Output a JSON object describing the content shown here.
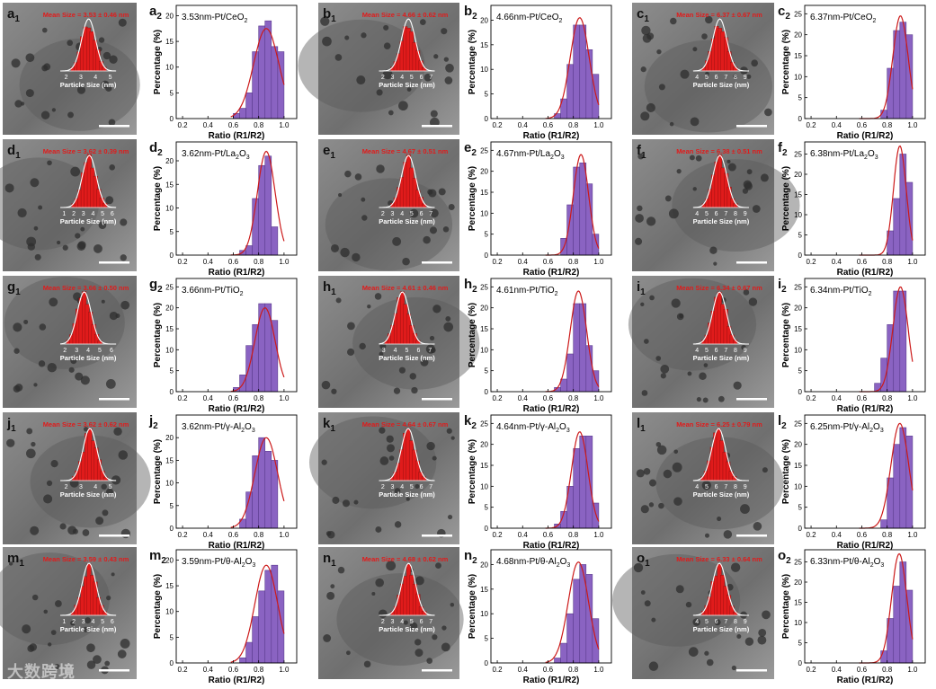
{
  "colors": {
    "bar": "#8a63c2",
    "bar_edge": "#5b3b8e",
    "fit": "#cc1a1a",
    "hist": "#e01b1b",
    "mean": "#e01b1b"
  },
  "watermark": "大数跨境",
  "rows": [
    {
      "catalyst": "Pt/CeO",
      "sub": "2",
      "panels": [
        {
          "tem_label": "a",
          "tem_mean": "Mean Size = 3.53 ± 0.46 nm",
          "tem_ticks": [
            "2",
            "3",
            "4",
            "5"
          ],
          "inset_center": 3.53,
          "chart_label": "a",
          "chart_title": "3.53nm-Pt/CeO"
        },
        {
          "tem_label": "b",
          "tem_mean": "Mean Size = 4.66 ± 0.62 nm",
          "tem_ticks": [
            "2",
            "3",
            "4",
            "5",
            "6",
            "7"
          ],
          "inset_center": 4.66,
          "chart_label": "b",
          "chart_title": "4.66nm-Pt/CeO"
        },
        {
          "tem_label": "c",
          "tem_mean": "Mean Size = 6.37 ± 0.67 nm",
          "tem_ticks": [
            "4",
            "5",
            "6",
            "7",
            "8",
            "9"
          ],
          "inset_center": 6.37,
          "chart_label": "c",
          "chart_title": "6.37nm-Pt/CeO"
        }
      ]
    },
    {
      "catalyst": "Pt/La",
      "sub": "2",
      "sub2": "3",
      "panels": [
        {
          "tem_label": "d",
          "tem_mean": "Mean Size = 3.62 ± 0.39 nm",
          "tem_ticks": [
            "1",
            "2",
            "3",
            "4",
            "5",
            "6"
          ],
          "inset_center": 3.62,
          "chart_label": "d",
          "chart_title": "3.62nm-Pt/La"
        },
        {
          "tem_label": "e",
          "tem_mean": "Mean Size = 4.67 ± 0.51 nm",
          "tem_ticks": [
            "2",
            "3",
            "4",
            "5",
            "6",
            "7"
          ],
          "inset_center": 4.67,
          "chart_label": "e",
          "chart_title": "4.67nm-Pt/La"
        },
        {
          "tem_label": "f",
          "tem_mean": "Mean Size = 6.38 ± 0.51 nm",
          "tem_ticks": [
            "4",
            "5",
            "6",
            "7",
            "8",
            "9"
          ],
          "inset_center": 6.38,
          "chart_label": "f",
          "chart_title": "6.38nm-Pt/La"
        }
      ]
    },
    {
      "catalyst": "Pt/TiO",
      "sub": "2",
      "panels": [
        {
          "tem_label": "g",
          "tem_mean": "Mean Size = 3.66 ± 0.50 nm",
          "tem_ticks": [
            "2",
            "3",
            "4",
            "5",
            "6"
          ],
          "inset_center": 3.66,
          "chart_label": "g",
          "chart_title": "3.66nm-Pt/TiO"
        },
        {
          "tem_label": "h",
          "tem_mean": "Mean Size = 4.61 ± 0.46 nm",
          "tem_ticks": [
            "3",
            "4",
            "5",
            "6",
            "7"
          ],
          "inset_center": 4.61,
          "chart_label": "h",
          "chart_title": "4.61nm-Pt/TiO"
        },
        {
          "tem_label": "i",
          "tem_mean": "Mean Size = 6.34 ± 0.67 nm",
          "tem_ticks": [
            "4",
            "5",
            "6",
            "7",
            "8",
            "9"
          ],
          "inset_center": 6.34,
          "chart_label": "i",
          "chart_title": "6.34nm-Pt/TiO"
        }
      ]
    },
    {
      "catalyst": "Pt/γ-Al",
      "sub": "2",
      "sub2": "3",
      "panels": [
        {
          "tem_label": "j",
          "tem_mean": "Mean Size = 3.62 ± 0.62 nm",
          "tem_ticks": [
            "2",
            "3",
            "4",
            "5"
          ],
          "inset_center": 3.62,
          "chart_label": "j",
          "chart_title": "3.62nm-Pt/γ-Al"
        },
        {
          "tem_label": "k",
          "tem_mean": "Mean Size = 4.64 ± 0.67 nm",
          "tem_ticks": [
            "2",
            "3",
            "4",
            "5",
            "6",
            "7"
          ],
          "inset_center": 4.64,
          "chart_label": "k",
          "chart_title": "4.64nm-Pt/γ-Al"
        },
        {
          "tem_label": "l",
          "tem_mean": "Mean Size = 6.25 ± 0.79 nm",
          "tem_ticks": [
            "4",
            "5",
            "6",
            "7",
            "8",
            "9"
          ],
          "inset_center": 6.25,
          "chart_label": "l",
          "chart_title": "6.25nm-Pt/γ-Al"
        }
      ]
    },
    {
      "catalyst": "Pt/θ-Al",
      "sub": "2",
      "sub2": "3",
      "panels": [
        {
          "tem_label": "m",
          "tem_mean": "Mean Size = 3.59 ± 0.43 nm",
          "tem_ticks": [
            "1",
            "2",
            "3",
            "4",
            "5",
            "6"
          ],
          "inset_center": 3.59,
          "chart_label": "m",
          "chart_title": "3.59nm-Pt/θ-Al"
        },
        {
          "tem_label": "n",
          "tem_mean": "Mean Size = 4.68 ± 0.62 nm",
          "tem_ticks": [
            "2",
            "3",
            "4",
            "5",
            "6",
            "7"
          ],
          "inset_center": 4.68,
          "chart_label": "n",
          "chart_title": "4.68nm-Pt/θ-Al"
        },
        {
          "tem_label": "o",
          "tem_mean": "Mean Size = 6.33 ± 0.64 nm",
          "tem_ticks": [
            "4",
            "5",
            "6",
            "7",
            "8",
            "9"
          ],
          "inset_center": 6.33,
          "chart_label": "o",
          "chart_title": "6.33nm-Pt/θ-Al"
        }
      ]
    }
  ],
  "inset_xlabel": "Particle Size (nm)",
  "chart_data": {
    "type": "bar",
    "title": "Distribution of ratio R1/R2 for Pt catalysts (15 panels)",
    "xlabel": "Ratio (R1/R2)",
    "ylabel": "Percentage (%)",
    "xlim": [
      0.15,
      1.1
    ],
    "xticks": [
      0.2,
      0.4,
      0.6,
      0.8,
      1.0
    ],
    "xtick_labels": [
      "0.2",
      "0.4",
      "0.6",
      "0.8",
      "1.0"
    ],
    "panels": [
      {
        "id": "a2",
        "title": "3.53nm-Pt/CeO2",
        "ylim": [
          0,
          22
        ],
        "yticks": [
          0,
          5,
          10,
          15,
          20
        ],
        "bar_centers": [
          0.625,
          0.675,
          0.725,
          0.775,
          0.825,
          0.875,
          0.925,
          0.975
        ],
        "values": [
          1,
          2,
          5,
          13,
          18,
          19,
          14,
          13
        ],
        "fit": {
          "mu": 0.86,
          "sigma": 0.1,
          "peak": 17.5
        }
      },
      {
        "id": "b2",
        "title": "4.66nm-Pt/CeO2",
        "ylim": [
          0,
          23
        ],
        "yticks": [
          0,
          5,
          10,
          15,
          20
        ],
        "bar_centers": [
          0.675,
          0.725,
          0.775,
          0.825,
          0.875,
          0.925,
          0.975
        ],
        "values": [
          1,
          4,
          11,
          19,
          19,
          14,
          9
        ],
        "fit": {
          "mu": 0.85,
          "sigma": 0.075,
          "peak": 20.5
        }
      },
      {
        "id": "c2",
        "title": "6.37nm-Pt/CeO2",
        "ylim": [
          0,
          27
        ],
        "yticks": [
          0,
          5,
          10,
          15,
          20,
          25
        ],
        "bar_centers": [
          0.775,
          0.825,
          0.875,
          0.925,
          0.975
        ],
        "values": [
          2,
          12,
          21,
          23,
          20
        ],
        "fit": {
          "mu": 0.905,
          "sigma": 0.06,
          "peak": 24.5
        }
      },
      {
        "id": "d2",
        "title": "3.62nm-Pt/La2O3",
        "ylim": [
          0,
          24
        ],
        "yticks": [
          0,
          5,
          10,
          15,
          20
        ],
        "bar_centers": [
          0.675,
          0.725,
          0.775,
          0.825,
          0.875,
          0.925
        ],
        "values": [
          1,
          2,
          12,
          19,
          21,
          6
        ],
        "fit": {
          "mu": 0.86,
          "sigma": 0.07,
          "peak": 22
        }
      },
      {
        "id": "e2",
        "title": "4.67nm-Pt/La2O3",
        "ylim": [
          0,
          27
        ],
        "yticks": [
          0,
          5,
          10,
          15,
          20,
          25
        ],
        "bar_centers": [
          0.725,
          0.775,
          0.825,
          0.875,
          0.925,
          0.975
        ],
        "values": [
          4,
          12,
          21,
          22,
          17,
          5
        ],
        "fit": {
          "mu": 0.86,
          "sigma": 0.06,
          "peak": 24
        }
      },
      {
        "id": "f2",
        "title": "6.38nm-Pt/La2O3",
        "ylim": [
          0,
          28
        ],
        "yticks": [
          0,
          5,
          10,
          15,
          20,
          25
        ],
        "bar_centers": [
          0.825,
          0.875,
          0.925,
          0.975
        ],
        "values": [
          6,
          14,
          25,
          18
        ],
        "fit": {
          "mu": 0.9,
          "sigma": 0.05,
          "peak": 27
        }
      },
      {
        "id": "g2",
        "title": "3.66nm-Pt/TiO2",
        "ylim": [
          0,
          27
        ],
        "yticks": [
          0,
          5,
          10,
          15,
          20,
          25
        ],
        "bar_centers": [
          0.625,
          0.675,
          0.725,
          0.775,
          0.825,
          0.875,
          0.925
        ],
        "values": [
          1,
          4,
          11,
          16,
          21,
          21,
          17
        ],
        "fit": {
          "mu": 0.85,
          "sigma": 0.08,
          "peak": 20
        }
      },
      {
        "id": "h2",
        "title": "4.61nm-Pt/TiO2",
        "ylim": [
          0,
          27
        ],
        "yticks": [
          0,
          5,
          10,
          15,
          20,
          25
        ],
        "bar_centers": [
          0.675,
          0.725,
          0.775,
          0.825,
          0.875,
          0.925,
          0.975
        ],
        "values": [
          1,
          3,
          9,
          21,
          21,
          11,
          5
        ],
        "fit": {
          "mu": 0.84,
          "sigma": 0.065,
          "peak": 24
        }
      },
      {
        "id": "i2",
        "title": "6.34nm-Pt/TiO2",
        "ylim": [
          0,
          27
        ],
        "yticks": [
          0,
          5,
          10,
          15,
          20,
          25
        ],
        "bar_centers": [
          0.725,
          0.775,
          0.825,
          0.875,
          0.925
        ],
        "values": [
          2,
          8,
          16,
          24,
          24
        ],
        "fit": {
          "mu": 0.905,
          "sigma": 0.06,
          "peak": 25
        }
      },
      {
        "id": "j2",
        "title": "3.62nm-Pt/γ-Al2O3",
        "ylim": [
          0,
          25
        ],
        "yticks": [
          0,
          5,
          10,
          15,
          20
        ],
        "bar_centers": [
          0.675,
          0.725,
          0.775,
          0.825,
          0.875,
          0.925
        ],
        "values": [
          2,
          8,
          16,
          20,
          17,
          15
        ],
        "fit": {
          "mu": 0.86,
          "sigma": 0.09,
          "peak": 20
        }
      },
      {
        "id": "k2",
        "title": "4.64nm-Pt/γ-Al2O3",
        "ylim": [
          0,
          27
        ],
        "yticks": [
          0,
          5,
          10,
          15,
          20,
          25
        ],
        "bar_centers": [
          0.675,
          0.725,
          0.775,
          0.825,
          0.875,
          0.925,
          0.975
        ],
        "values": [
          1,
          4,
          10,
          19,
          22,
          22,
          6
        ],
        "fit": {
          "mu": 0.85,
          "sigma": 0.065,
          "peak": 23
        }
      },
      {
        "id": "l2",
        "title": "6.25nm-Pt/γ-Al2O3",
        "ylim": [
          0,
          27
        ],
        "yticks": [
          0,
          5,
          10,
          15,
          20,
          25
        ],
        "bar_centers": [
          0.775,
          0.825,
          0.875,
          0.925,
          0.975
        ],
        "values": [
          2,
          12,
          20,
          24,
          22
        ],
        "fit": {
          "mu": 0.9,
          "sigma": 0.07,
          "peak": 25
        }
      },
      {
        "id": "m2",
        "title": "3.59nm-Pt/θ-Al2O3",
        "ylim": [
          0,
          22
        ],
        "yticks": [
          0,
          5,
          10,
          15,
          20
        ],
        "bar_centers": [
          0.675,
          0.725,
          0.775,
          0.825,
          0.875,
          0.925,
          0.975
        ],
        "values": [
          1,
          4,
          9,
          14,
          18,
          19,
          14
        ],
        "fit": {
          "mu": 0.86,
          "sigma": 0.09,
          "peak": 19
        }
      },
      {
        "id": "n2",
        "title": "4.68nm-Pt/θ-Al2O3",
        "ylim": [
          0,
          23
        ],
        "yticks": [
          0,
          5,
          10,
          15,
          20
        ],
        "bar_centers": [
          0.675,
          0.725,
          0.775,
          0.825,
          0.875,
          0.925,
          0.975
        ],
        "values": [
          1,
          4,
          10,
          17,
          20,
          18,
          9
        ],
        "fit": {
          "mu": 0.84,
          "sigma": 0.08,
          "peak": 20.5
        }
      },
      {
        "id": "o2",
        "title": "6.33nm-Pt/θ-Al2O3",
        "ylim": [
          0,
          28
        ],
        "yticks": [
          0,
          5,
          10,
          15,
          20,
          25
        ],
        "bar_centers": [
          0.775,
          0.825,
          0.875,
          0.925,
          0.975
        ],
        "values": [
          3,
          11,
          19,
          25,
          18
        ],
        "fit": {
          "mu": 0.895,
          "sigma": 0.06,
          "peak": 27
        }
      }
    ]
  }
}
